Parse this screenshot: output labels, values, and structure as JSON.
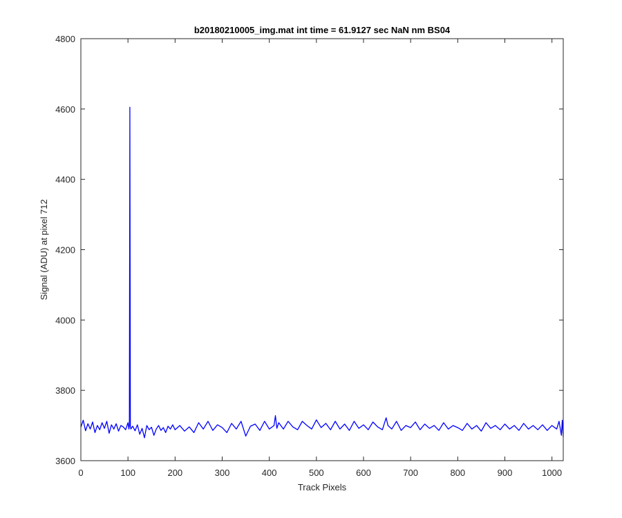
{
  "chart_data": {
    "type": "line",
    "title": "b20180210005_img.mat int time = 61.9127 sec  NaN nm BS04",
    "xlabel": "Track Pixels",
    "ylabel": "Signal (ADU) at pixel 712",
    "xlim": [
      0,
      1024
    ],
    "ylim": [
      3600,
      4800
    ],
    "xticks": [
      0,
      100,
      200,
      300,
      400,
      500,
      600,
      700,
      800,
      900,
      1000
    ],
    "yticks": [
      3600,
      3800,
      4000,
      4200,
      4400,
      4600,
      4800
    ],
    "grid": false,
    "legend": "none",
    "series": [
      {
        "color": "#0000ff",
        "baseline": 3695,
        "spike": {
          "x": 104,
          "y": 4605
        },
        "x": [
          0,
          5,
          10,
          15,
          20,
          25,
          30,
          35,
          40,
          45,
          50,
          55,
          60,
          65,
          70,
          75,
          80,
          85,
          90,
          95,
          100,
          102,
          103,
          104,
          105,
          106,
          110,
          115,
          120,
          125,
          130,
          135,
          140,
          145,
          150,
          155,
          160,
          165,
          170,
          175,
          180,
          185,
          190,
          195,
          200,
          210,
          220,
          230,
          240,
          250,
          260,
          270,
          280,
          290,
          300,
          310,
          320,
          330,
          340,
          350,
          360,
          370,
          380,
          390,
          400,
          410,
          413,
          416,
          420,
          430,
          440,
          450,
          460,
          470,
          480,
          490,
          500,
          510,
          520,
          530,
          540,
          550,
          560,
          570,
          580,
          590,
          600,
          610,
          620,
          630,
          640,
          648,
          652,
          660,
          670,
          680,
          690,
          700,
          710,
          720,
          730,
          740,
          750,
          760,
          770,
          780,
          790,
          800,
          810,
          820,
          830,
          840,
          850,
          860,
          870,
          880,
          890,
          900,
          910,
          920,
          930,
          940,
          950,
          960,
          970,
          980,
          990,
          1000,
          1010,
          1015,
          1020,
          1022,
          1024
        ],
        "y": [
          3695,
          3715,
          3685,
          3705,
          3690,
          3710,
          3680,
          3700,
          3688,
          3708,
          3692,
          3712,
          3678,
          3702,
          3690,
          3705,
          3684,
          3700,
          3696,
          3688,
          3708,
          3690,
          3700,
          4605,
          3700,
          3690,
          3698,
          3685,
          3702,
          3675,
          3692,
          3665,
          3700,
          3688,
          3695,
          3672,
          3690,
          3700,
          3686,
          3694,
          3680,
          3698,
          3690,
          3702,
          3688,
          3700,
          3684,
          3696,
          3680,
          3708,
          3690,
          3712,
          3686,
          3702,
          3694,
          3680,
          3706,
          3690,
          3712,
          3670,
          3698,
          3704,
          3686,
          3712,
          3690,
          3700,
          3728,
          3692,
          3708,
          3690,
          3712,
          3696,
          3688,
          3712,
          3700,
          3690,
          3716,
          3694,
          3706,
          3688,
          3712,
          3690,
          3704,
          3686,
          3712,
          3692,
          3702,
          3688,
          3710,
          3696,
          3688,
          3722,
          3700,
          3690,
          3712,
          3686,
          3700,
          3694,
          3710,
          3688,
          3704,
          3692,
          3700,
          3686,
          3708,
          3690,
          3700,
          3694,
          3686,
          3706,
          3690,
          3700,
          3684,
          3708,
          3692,
          3700,
          3688,
          3704,
          3690,
          3700,
          3686,
          3706,
          3690,
          3700,
          3688,
          3702,
          3686,
          3700,
          3690,
          3712,
          3672,
          3715,
          3668
        ]
      }
    ]
  }
}
